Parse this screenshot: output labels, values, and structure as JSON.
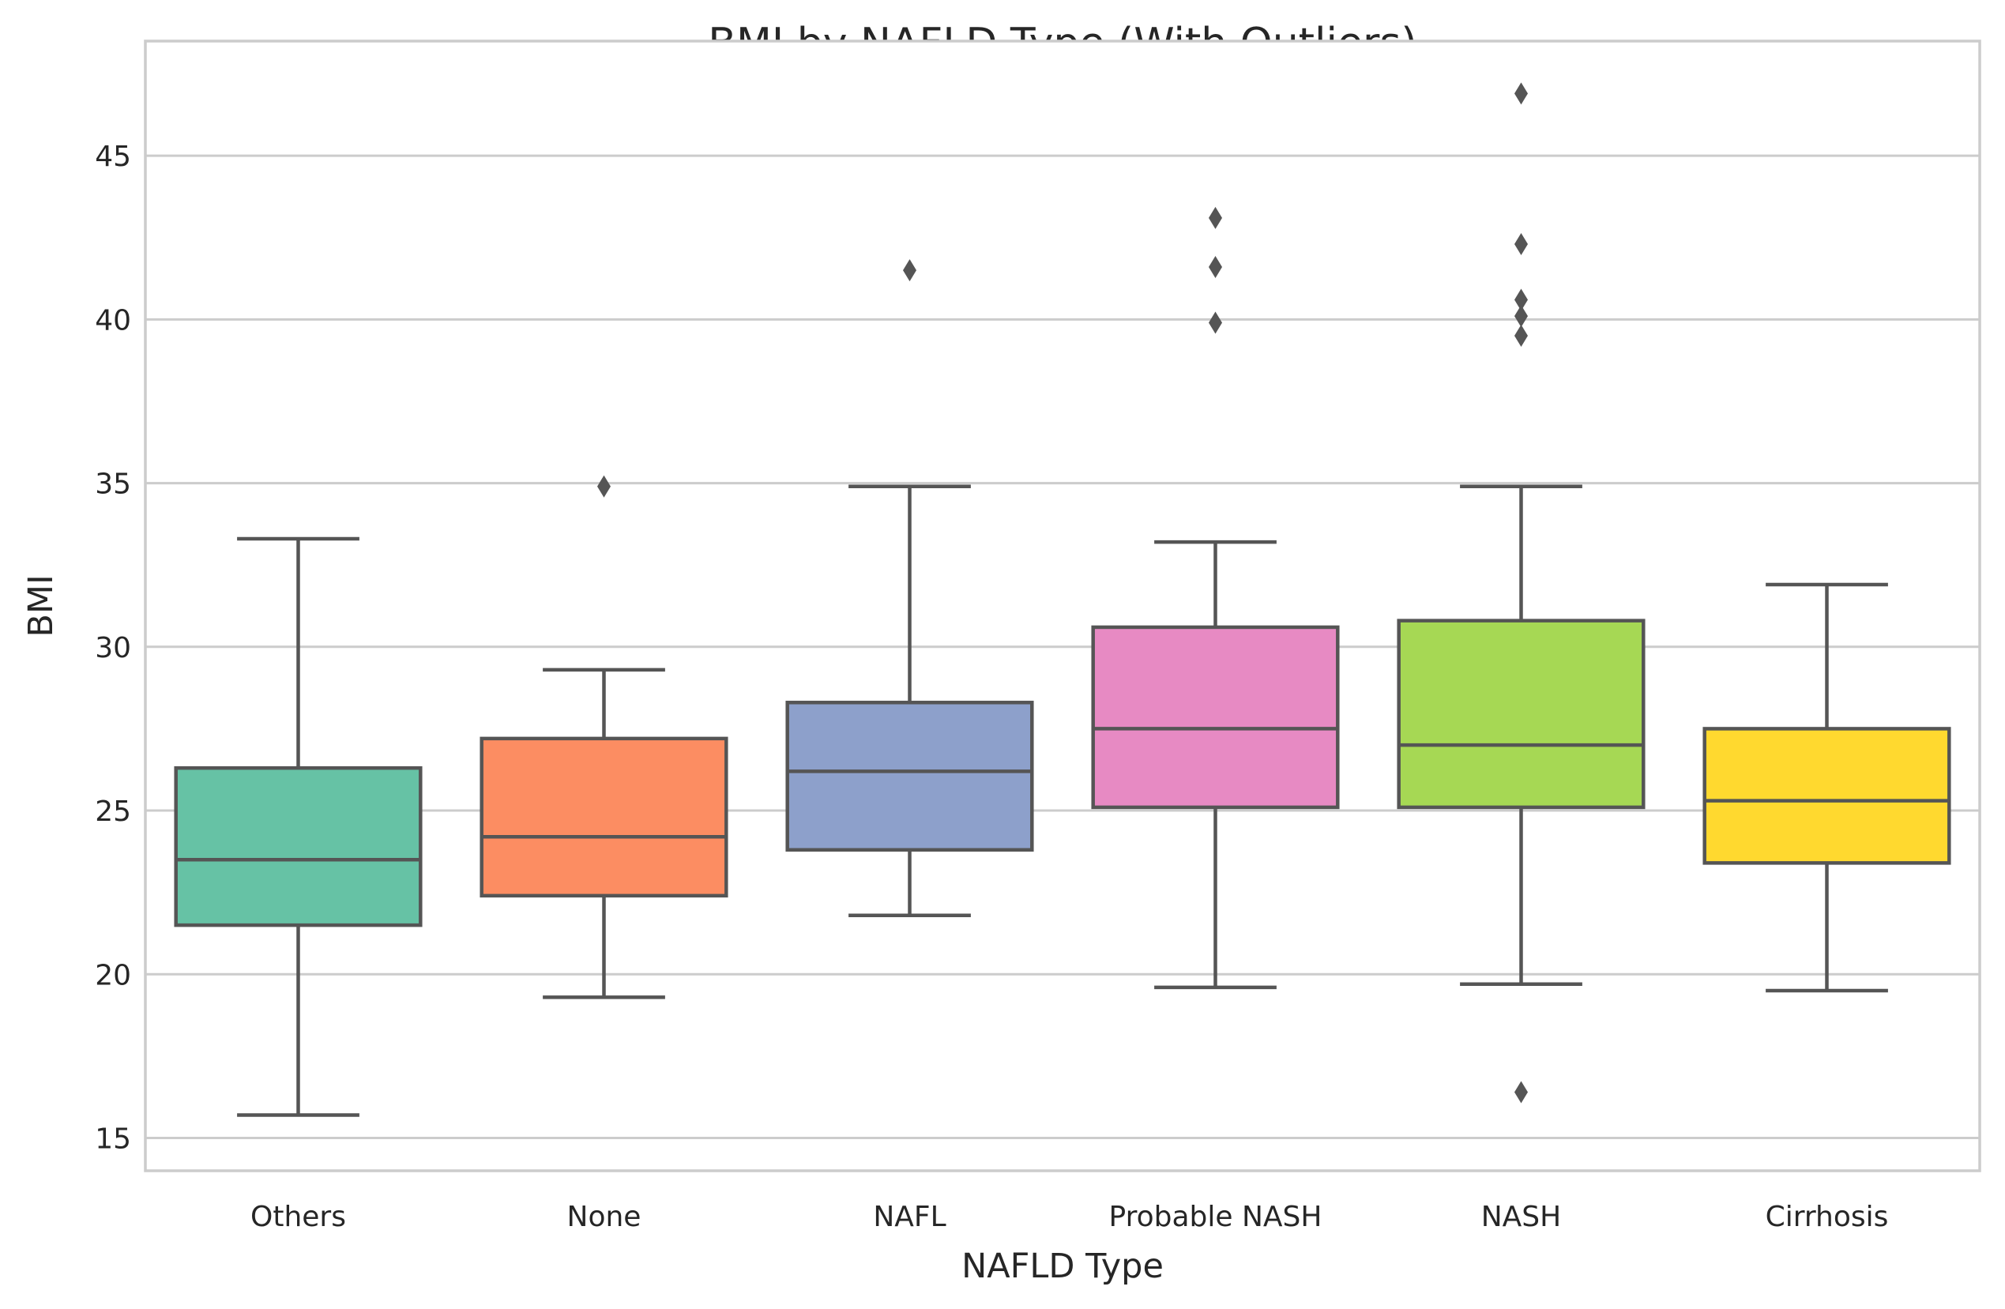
{
  "chart_data": {
    "type": "box",
    "title": "BMI by NAFLD Type (With Outliers)",
    "xlabel": "NAFLD Type",
    "ylabel": "BMI",
    "ylim": [
      14.0,
      48.5
    ],
    "yticks": [
      15,
      20,
      25,
      30,
      35,
      40,
      45
    ],
    "grid": "horizontal",
    "categories": [
      "Others",
      "None",
      "NAFL",
      "Probable NASH",
      "NASH",
      "Cirrhosis"
    ],
    "boxes": [
      {
        "category": "Others",
        "whisker_low": 15.7,
        "q1": 21.5,
        "median": 23.5,
        "q3": 26.3,
        "whisker_high": 33.3,
        "outliers": [],
        "color": "#66c2a5"
      },
      {
        "category": "None",
        "whisker_low": 19.3,
        "q1": 22.4,
        "median": 24.2,
        "q3": 27.2,
        "whisker_high": 29.3,
        "outliers": [
          34.9
        ],
        "color": "#fc8d62"
      },
      {
        "category": "NAFL",
        "whisker_low": 21.8,
        "q1": 23.8,
        "median": 26.2,
        "q3": 28.3,
        "whisker_high": 34.9,
        "outliers": [
          41.5
        ],
        "color": "#8da0cb"
      },
      {
        "category": "Probable NASH",
        "whisker_low": 19.6,
        "q1": 25.1,
        "median": 27.5,
        "q3": 30.6,
        "whisker_high": 33.2,
        "outliers": [
          39.9,
          41.6,
          43.1
        ],
        "color": "#e78ac3"
      },
      {
        "category": "NASH",
        "whisker_low": 19.7,
        "q1": 25.1,
        "median": 27.0,
        "q3": 30.8,
        "whisker_high": 34.9,
        "outliers": [
          16.4,
          39.5,
          40.1,
          40.6,
          42.3,
          46.9
        ],
        "color": "#a6d854"
      },
      {
        "category": "Cirrhosis",
        "whisker_low": 19.5,
        "q1": 23.4,
        "median": 25.3,
        "q3": 27.5,
        "whisker_high": 31.9,
        "outliers": [],
        "color": "#ffd92f"
      }
    ]
  },
  "colors": {
    "grid": "#cccccc",
    "frame": "#cccccc",
    "box_edge": "#555555",
    "text": "#262626"
  }
}
